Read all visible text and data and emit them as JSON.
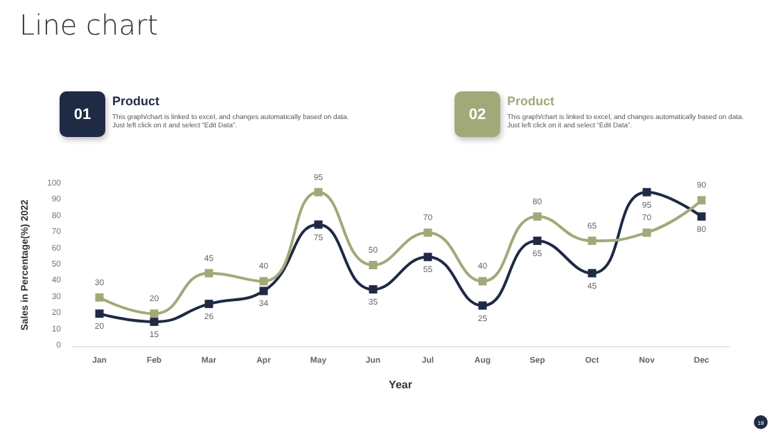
{
  "chart_data": {
    "type": "line",
    "title": "Line chart",
    "xlabel": "Year",
    "ylabel": "Sales in Percentage(%) 2022",
    "categories": [
      "Jan",
      "Feb",
      "Mar",
      "Apr",
      "May",
      "Jun",
      "Jul",
      "Aug",
      "Sep",
      "Oct",
      "Nov",
      "Dec"
    ],
    "series": [
      {
        "name": "Product",
        "color": "#1f2a44",
        "values": [
          20,
          15,
          26,
          34,
          75,
          35,
          55,
          25,
          65,
          45,
          95,
          80
        ]
      },
      {
        "name": "Product",
        "color": "#a3a878",
        "values": [
          30,
          20,
          45,
          40,
          95,
          50,
          70,
          40,
          80,
          65,
          70,
          90
        ]
      }
    ],
    "ylim": [
      0,
      100
    ],
    "yticks": [
      0,
      10,
      20,
      30,
      40,
      50,
      60,
      70,
      80,
      90,
      100
    ],
    "grid": false,
    "legend": "top",
    "marker": "square",
    "line_style": "solid",
    "data_labels": true,
    "annotations": [
      "01",
      "This graph/chart is linked to excel, and changes automatically based on data. Just left click on it and select “Edit Data”.",
      "02",
      "This graph/chart is linked to excel, and changes automatically based on data. Just left click on it and select “Edit Data”.",
      "19"
    ]
  }
}
